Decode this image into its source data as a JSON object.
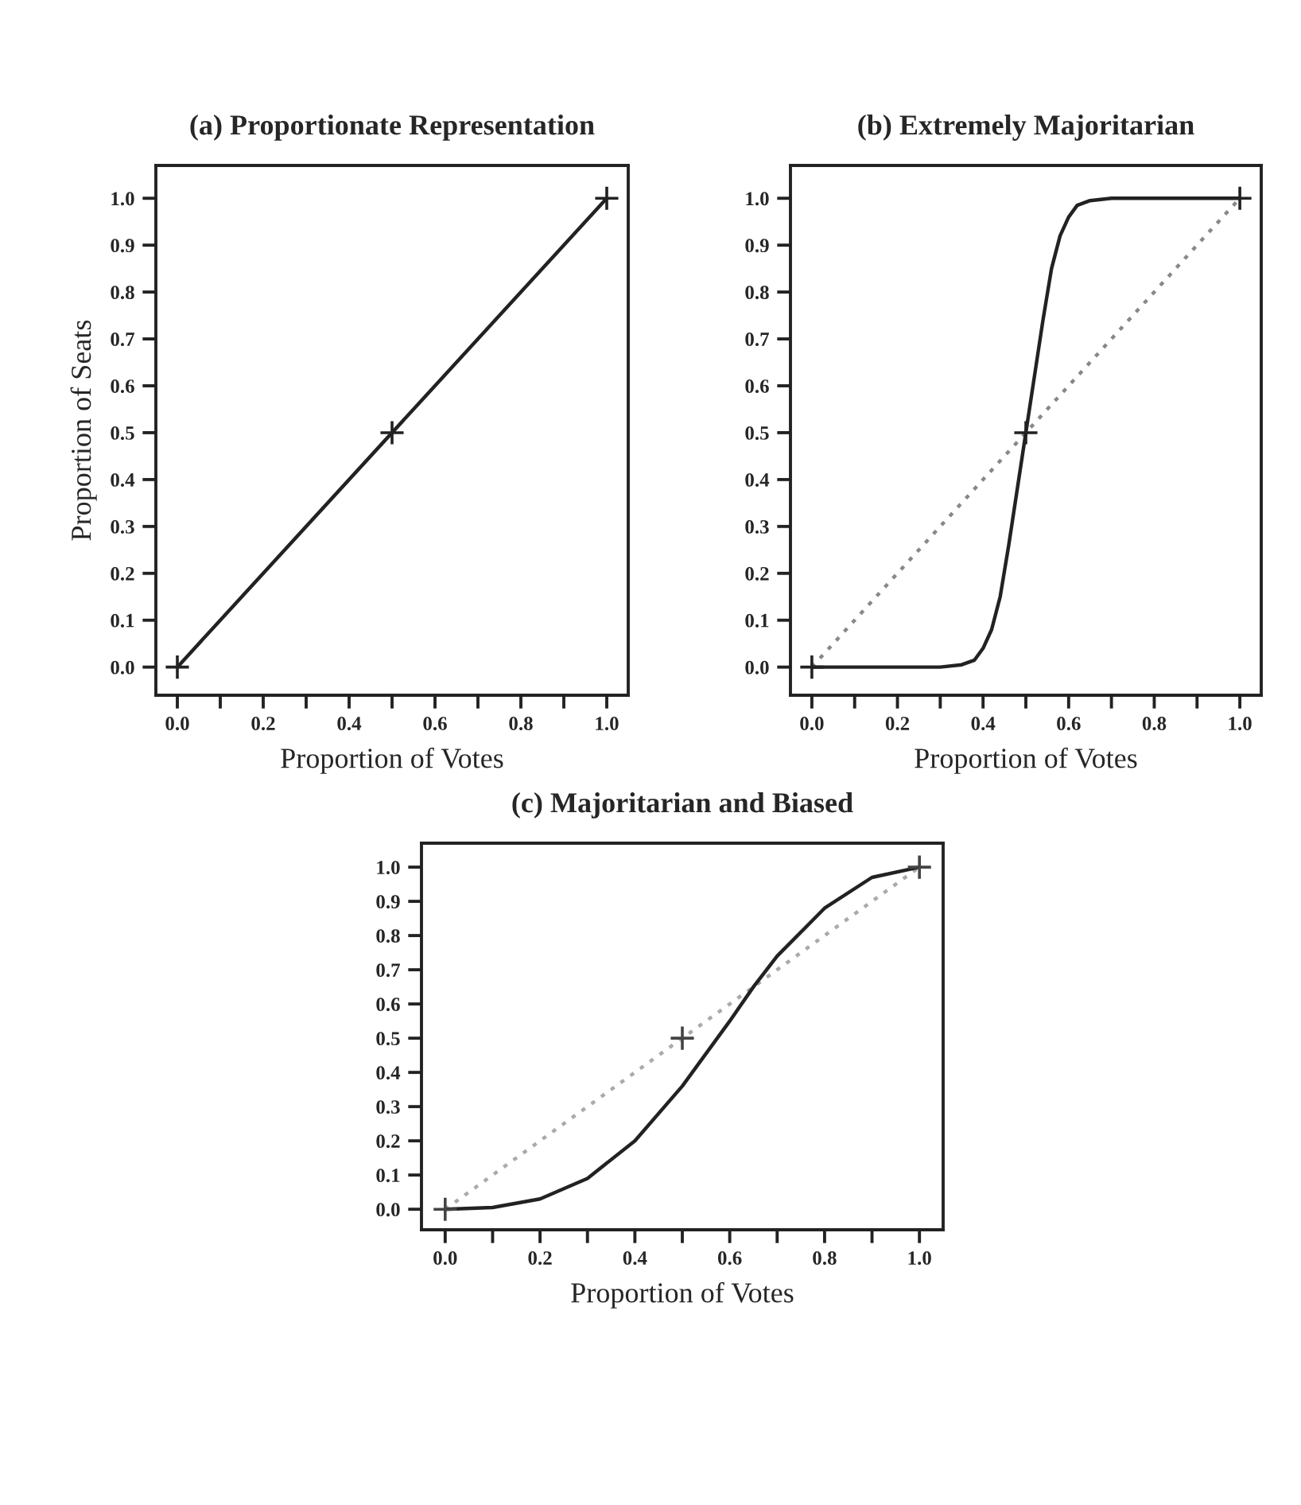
{
  "chart_data": [
    {
      "type": "line",
      "title": "(a) Proportionate Representation",
      "xlabel": "Proportion of Votes",
      "ylabel": "Proportion of Seats",
      "xlim": [
        -0.05,
        1.05
      ],
      "ylim": [
        -0.06,
        1.07
      ],
      "xticks": [
        {
          "value": 0.0,
          "label": "0.0"
        },
        {
          "value": 0.1,
          "label": null
        },
        {
          "value": 0.2,
          "label": "0.2"
        },
        {
          "value": 0.3,
          "label": null
        },
        {
          "value": 0.4,
          "label": "0.4"
        },
        {
          "value": 0.5,
          "label": null
        },
        {
          "value": 0.6,
          "label": "0.6"
        },
        {
          "value": 0.7,
          "label": null
        },
        {
          "value": 0.8,
          "label": "0.8"
        },
        {
          "value": 0.9,
          "label": null
        },
        {
          "value": 1.0,
          "label": "1.0"
        }
      ],
      "yticks": [
        {
          "value": 0.0,
          "label": "0.0"
        },
        {
          "value": 0.1,
          "label": "0.1"
        },
        {
          "value": 0.2,
          "label": "0.2"
        },
        {
          "value": 0.3,
          "label": "0.3"
        },
        {
          "value": 0.4,
          "label": "0.4"
        },
        {
          "value": 0.5,
          "label": "0.5"
        },
        {
          "value": 0.6,
          "label": "0.6"
        },
        {
          "value": 0.7,
          "label": "0.7"
        },
        {
          "value": 0.8,
          "label": "0.8"
        },
        {
          "value": 0.9,
          "label": "0.9"
        },
        {
          "value": 1.0,
          "label": "1.0"
        }
      ],
      "grid": false,
      "series": [
        {
          "color": "#222222",
          "line_style": "solid",
          "x": [
            0.0,
            1.0
          ],
          "values": [
            0.0,
            1.0
          ]
        },
        {
          "type": "scatter",
          "color": "#222222",
          "marker": "cross",
          "x": [
            0.0,
            0.5,
            1.0
          ],
          "values": [
            0.0,
            0.5,
            1.0
          ]
        }
      ]
    },
    {
      "type": "line",
      "title": "(b) Extremely Majoritarian",
      "xlabel": "Proportion of Votes",
      "xlim": [
        -0.05,
        1.05
      ],
      "ylim": [
        -0.06,
        1.07
      ],
      "xticks": [
        {
          "value": 0.0,
          "label": "0.0"
        },
        {
          "value": 0.1,
          "label": null
        },
        {
          "value": 0.2,
          "label": "0.2"
        },
        {
          "value": 0.3,
          "label": null
        },
        {
          "value": 0.4,
          "label": "0.4"
        },
        {
          "value": 0.5,
          "label": null
        },
        {
          "value": 0.6,
          "label": "0.6"
        },
        {
          "value": 0.7,
          "label": null
        },
        {
          "value": 0.8,
          "label": "0.8"
        },
        {
          "value": 0.9,
          "label": null
        },
        {
          "value": 1.0,
          "label": "1.0"
        }
      ],
      "yticks": [
        {
          "value": 0.0,
          "label": "0.0"
        },
        {
          "value": 0.1,
          "label": "0.1"
        },
        {
          "value": 0.2,
          "label": "0.2"
        },
        {
          "value": 0.3,
          "label": "0.3"
        },
        {
          "value": 0.4,
          "label": "0.4"
        },
        {
          "value": 0.5,
          "label": "0.5"
        },
        {
          "value": 0.6,
          "label": "0.6"
        },
        {
          "value": 0.7,
          "label": "0.7"
        },
        {
          "value": 0.8,
          "label": "0.8"
        },
        {
          "value": 0.9,
          "label": "0.9"
        },
        {
          "value": 1.0,
          "label": "1.0"
        }
      ],
      "grid": false,
      "series": [
        {
          "color": "#888888",
          "line_style": "dotted",
          "x": [
            0.0,
            1.0
          ],
          "values": [
            0.0,
            1.0
          ]
        },
        {
          "color": "#222222",
          "line_style": "solid",
          "x": [
            0.0,
            0.3,
            0.35,
            0.38,
            0.4,
            0.42,
            0.44,
            0.46,
            0.48,
            0.5,
            0.52,
            0.54,
            0.56,
            0.58,
            0.6,
            0.62,
            0.65,
            0.7,
            1.0
          ],
          "values": [
            0.0,
            0.0,
            0.005,
            0.015,
            0.04,
            0.08,
            0.15,
            0.26,
            0.38,
            0.5,
            0.62,
            0.74,
            0.85,
            0.92,
            0.96,
            0.985,
            0.995,
            1.0,
            1.0
          ]
        },
        {
          "type": "scatter",
          "color": "#222222",
          "marker": "cross",
          "x": [
            0.0,
            0.5,
            1.0
          ],
          "values": [
            0.0,
            0.5,
            1.0
          ]
        }
      ]
    },
    {
      "type": "line",
      "title": "(c) Majoritarian and Biased",
      "xlabel": "Proportion of Votes",
      "xlim": [
        -0.05,
        1.05
      ],
      "ylim": [
        -0.06,
        1.07
      ],
      "xticks": [
        {
          "value": 0.0,
          "label": "0.0"
        },
        {
          "value": 0.1,
          "label": null
        },
        {
          "value": 0.2,
          "label": "0.2"
        },
        {
          "value": 0.3,
          "label": null
        },
        {
          "value": 0.4,
          "label": "0.4"
        },
        {
          "value": 0.5,
          "label": null
        },
        {
          "value": 0.6,
          "label": "0.6"
        },
        {
          "value": 0.7,
          "label": null
        },
        {
          "value": 0.8,
          "label": "0.8"
        },
        {
          "value": 0.9,
          "label": null
        },
        {
          "value": 1.0,
          "label": "1.0"
        }
      ],
      "yticks": [
        {
          "value": 0.0,
          "label": "0.0"
        },
        {
          "value": 0.1,
          "label": "0.1"
        },
        {
          "value": 0.2,
          "label": "0.2"
        },
        {
          "value": 0.3,
          "label": "0.3"
        },
        {
          "value": 0.4,
          "label": "0.4"
        },
        {
          "value": 0.5,
          "label": "0.5"
        },
        {
          "value": 0.6,
          "label": "0.6"
        },
        {
          "value": 0.7,
          "label": "0.7"
        },
        {
          "value": 0.8,
          "label": "0.8"
        },
        {
          "value": 0.9,
          "label": "0.9"
        },
        {
          "value": 1.0,
          "label": "1.0"
        }
      ],
      "grid": false,
      "series": [
        {
          "color": "#aaaaaa",
          "line_style": "dotted",
          "x": [
            0.0,
            1.0
          ],
          "values": [
            0.0,
            1.0
          ]
        },
        {
          "color": "#222222",
          "line_style": "solid",
          "x": [
            0.0,
            0.1,
            0.2,
            0.3,
            0.4,
            0.5,
            0.6,
            0.65,
            0.7,
            0.8,
            0.9,
            1.0
          ],
          "values": [
            0.0,
            0.005,
            0.03,
            0.09,
            0.2,
            0.36,
            0.55,
            0.65,
            0.74,
            0.88,
            0.97,
            1.0
          ]
        },
        {
          "type": "scatter",
          "color": "#444444",
          "marker": "cross",
          "x": [
            0.0,
            0.5,
            1.0
          ],
          "values": [
            0.0,
            0.5,
            1.0
          ]
        }
      ]
    }
  ]
}
